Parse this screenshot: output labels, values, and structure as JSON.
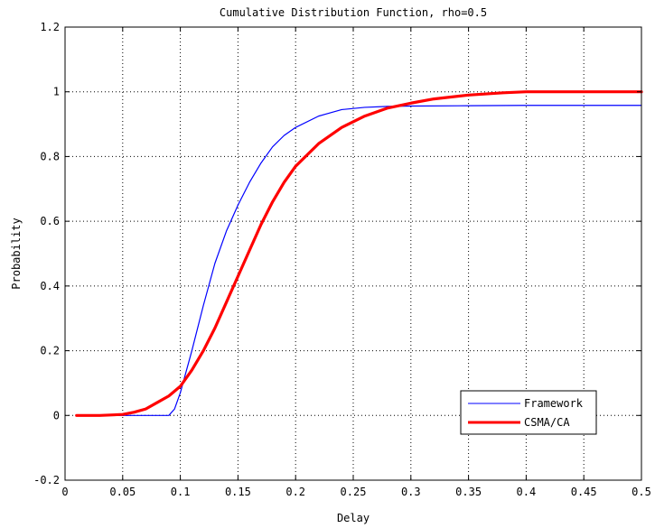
{
  "chart_data": {
    "type": "line",
    "title": "Cumulative Distribution Function, rho=0.5",
    "xlabel": "Delay",
    "ylabel": "Probability",
    "xlim": [
      0,
      0.5
    ],
    "ylim": [
      -0.2,
      1.2
    ],
    "x_ticks": [
      "0",
      "0.05",
      "0.1",
      "0.15",
      "0.2",
      "0.25",
      "0.3",
      "0.35",
      "0.4",
      "0.45",
      "0.5"
    ],
    "y_ticks": [
      "-0.2",
      "0",
      "0.2",
      "0.4",
      "0.6",
      "0.8",
      "1",
      "1.2"
    ],
    "x_tick_values": [
      0,
      0.05,
      0.1,
      0.15,
      0.2,
      0.25,
      0.3,
      0.35,
      0.4,
      0.45,
      0.5
    ],
    "y_tick_values": [
      -0.2,
      0,
      0.2,
      0.4,
      0.6,
      0.8,
      1,
      1.2
    ],
    "grid": true,
    "legend_position": "bottom-right",
    "series": [
      {
        "name": "Framework",
        "color": "#0000ff",
        "x": [
          0.01,
          0.05,
          0.085,
          0.09,
          0.095,
          0.1,
          0.11,
          0.12,
          0.13,
          0.14,
          0.15,
          0.16,
          0.17,
          0.18,
          0.19,
          0.2,
          0.22,
          0.24,
          0.26,
          0.28,
          0.3,
          0.35,
          0.4,
          0.45,
          0.5
        ],
        "y": [
          0,
          0,
          0,
          0,
          0.02,
          0.07,
          0.2,
          0.34,
          0.47,
          0.57,
          0.65,
          0.72,
          0.78,
          0.83,
          0.865,
          0.89,
          0.925,
          0.945,
          0.952,
          0.955,
          0.956,
          0.957,
          0.958,
          0.958,
          0.958
        ]
      },
      {
        "name": "CSMA/CA",
        "color": "#ff0000",
        "x": [
          0.01,
          0.03,
          0.05,
          0.06,
          0.07,
          0.08,
          0.09,
          0.1,
          0.11,
          0.12,
          0.13,
          0.14,
          0.15,
          0.16,
          0.17,
          0.18,
          0.19,
          0.2,
          0.22,
          0.24,
          0.26,
          0.28,
          0.3,
          0.32,
          0.35,
          0.38,
          0.4,
          0.45,
          0.5
        ],
        "y": [
          0,
          0,
          0.003,
          0.01,
          0.02,
          0.04,
          0.06,
          0.09,
          0.14,
          0.2,
          0.27,
          0.35,
          0.43,
          0.51,
          0.59,
          0.66,
          0.72,
          0.77,
          0.84,
          0.89,
          0.925,
          0.95,
          0.965,
          0.978,
          0.99,
          0.997,
          1.0,
          1.0,
          1.0
        ]
      }
    ]
  }
}
